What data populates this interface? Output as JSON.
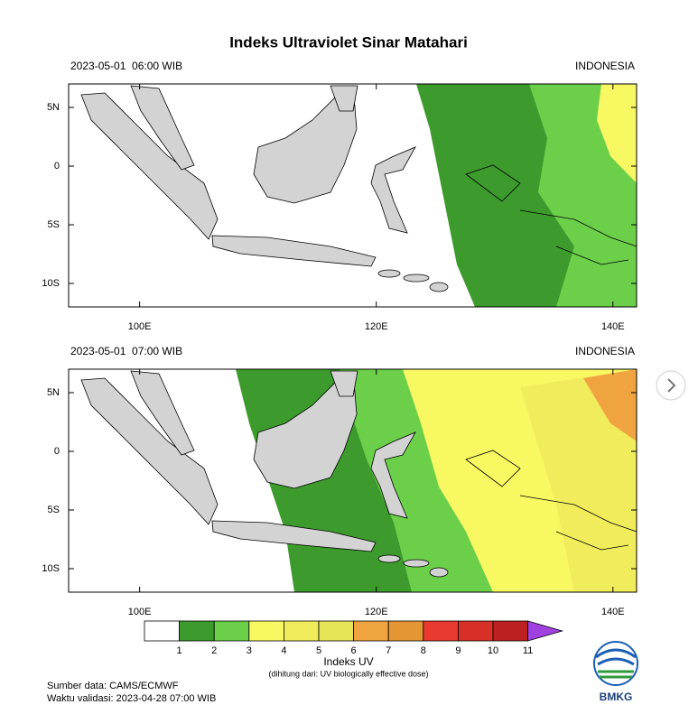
{
  "title": "Indeks Ultraviolet Sinar Matahari",
  "panels": [
    {
      "time": "2023-05-01  06:00 WIB",
      "region": "INDONESIA"
    },
    {
      "time": "2023-05-01  07:00 WIB",
      "region": "INDONESIA"
    }
  ],
  "map": {
    "latlim": [
      -12,
      7
    ],
    "lonlim": [
      94,
      142
    ],
    "lat_ticks": [
      {
        "value": 5,
        "label": "5N"
      },
      0,
      {
        "value": -5,
        "label": "5S"
      },
      {
        "value": -10,
        "label": "10S"
      }
    ],
    "lon_ticks": [
      {
        "value": 100,
        "label": "100E"
      },
      {
        "value": 120,
        "label": "120E"
      },
      {
        "value": 140,
        "label": "140E"
      }
    ]
  },
  "colorbar": {
    "ticks": [
      1,
      2,
      3,
      4,
      5,
      6,
      7,
      8,
      9,
      10,
      11
    ],
    "colors": [
      "#ffffff",
      "#3d9a2c",
      "#6ccf4a",
      "#f8f862",
      "#f1ec5c",
      "#e8e458",
      "#f0a440",
      "#e49634",
      "#e83a30",
      "#d83028",
      "#bc2020",
      "#a040e0"
    ],
    "label": "Indeks UV",
    "note": "(dihitung dari: UV biologically effective dose)"
  },
  "footer": {
    "source": "Sumber data: CAMS/ECMWF",
    "validity": "Waktu validasi: 2023-04-28 07:00 WIB"
  },
  "logo": "BMKG"
}
